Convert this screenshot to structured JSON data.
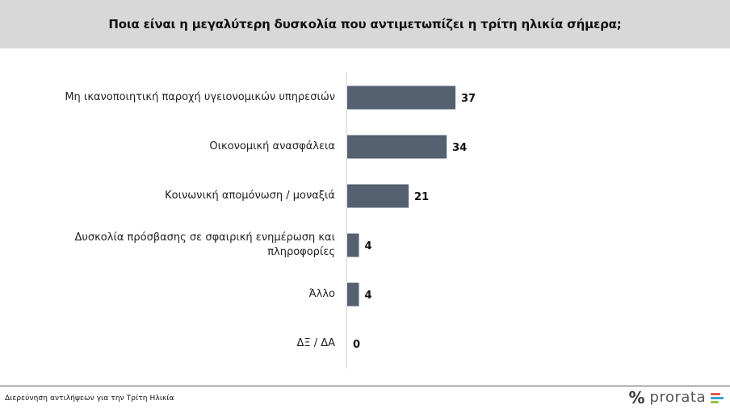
{
  "header": {
    "title": "Ποια είναι η μεγαλύτερη δυσκολία που αντιμετωπίζει η τρίτη ηλικία σήμερα;"
  },
  "chart_data": {
    "type": "bar",
    "orientation": "horizontal",
    "categories": [
      "Μη ικανοποιητική παροχή υγειονομικών υπηρεσιών",
      "Οικονομική ανασφάλεια",
      "Κοινωνική απομόνωση / μοναξιά",
      "Δυσκολία πρόσβασης σε σφαιρική ενημέρωση και πληροφορίες",
      "Άλλο",
      "ΔΞ / ΔΑ"
    ],
    "values": [
      37,
      34,
      21,
      4,
      4,
      0
    ],
    "value_labels": [
      "37",
      "34",
      "21",
      "4",
      "4",
      "0"
    ],
    "xlim": [
      0,
      40
    ],
    "grid": false,
    "bar_color": "#556070"
  },
  "footer": {
    "text": "Διερεύνηση αντιλήψεων για την Τρίτη Ηλικία",
    "brand_mark": "%",
    "brand_name": "prorata",
    "brand_colors": [
      "#e05a4e",
      "#3aa0d8",
      "#8cc63f"
    ]
  }
}
